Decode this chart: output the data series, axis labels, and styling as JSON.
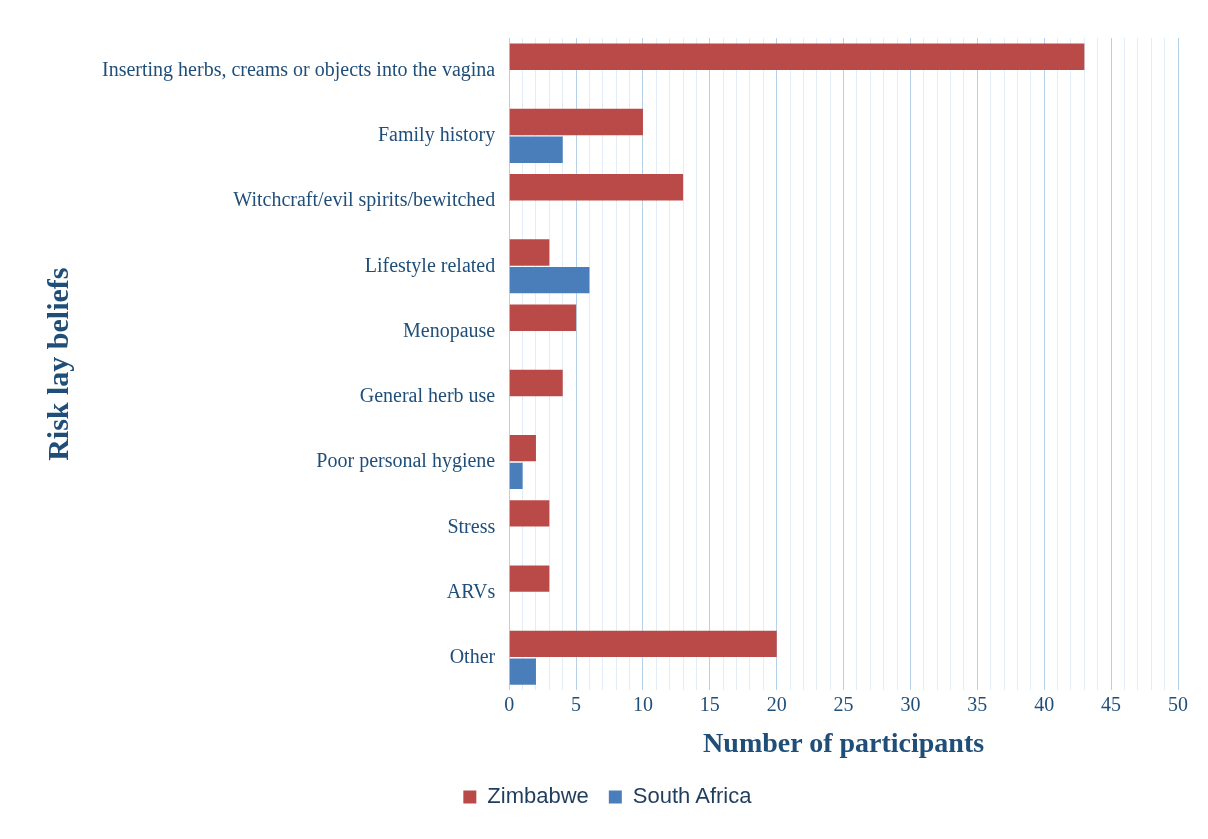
{
  "chart_data": {
    "type": "bar",
    "orientation": "horizontal",
    "xlabel": "Number of participants",
    "ylabel": "Risk lay beliefs",
    "categories": [
      "Inserting herbs, creams or objects into the vagina",
      "Family history",
      "Witchcraft/evil spirits/bewitched",
      "Lifestyle related",
      "Menopause",
      "General herb use",
      "Poor personal hygiene",
      "Stress",
      "ARVs",
      "Other"
    ],
    "series": [
      {
        "name": "Zimbabwe",
        "color": "#b94a48",
        "values": [
          43,
          10,
          13,
          3,
          5,
          4,
          2,
          3,
          3,
          20
        ]
      },
      {
        "name": "South Africa",
        "color": "#4a7ebb",
        "values": [
          null,
          4,
          null,
          6,
          null,
          null,
          1,
          null,
          null,
          2
        ]
      }
    ],
    "xlim": [
      0,
      50
    ],
    "xticks": [
      0,
      {
        "value": 1,
        "label": null
      },
      {
        "value": 2,
        "label": null
      },
      {
        "value": 3,
        "label": null
      },
      {
        "value": 4,
        "label": null
      },
      5,
      {
        "value": 6,
        "label": null
      },
      {
        "value": 7,
        "label": null
      },
      {
        "value": 8,
        "label": null
      },
      {
        "value": 9,
        "label": null
      },
      10,
      {
        "value": 11,
        "label": null
      },
      {
        "value": 12,
        "label": null
      },
      {
        "value": 13,
        "label": null
      },
      {
        "value": 14,
        "label": null
      },
      15,
      {
        "value": 16,
        "label": null
      },
      {
        "value": 17,
        "label": null
      },
      {
        "value": 18,
        "label": null
      },
      {
        "value": 19,
        "label": null
      },
      20,
      {
        "value": 21,
        "label": null
      },
      {
        "value": 22,
        "label": null
      },
      {
        "value": 23,
        "label": null
      },
      {
        "value": 24,
        "label": null
      },
      25,
      {
        "value": 26,
        "label": null
      },
      {
        "value": 27,
        "label": null
      },
      {
        "value": 28,
        "label": null
      },
      {
        "value": 29,
        "label": null
      },
      30,
      {
        "value": 31,
        "label": null
      },
      {
        "value": 32,
        "label": null
      },
      {
        "value": 33,
        "label": null
      },
      {
        "value": 34,
        "label": null
      },
      35,
      {
        "value": 36,
        "label": null
      },
      {
        "value": 37,
        "label": null
      },
      {
        "value": 38,
        "label": null
      },
      {
        "value": 39,
        "label": null
      },
      40,
      {
        "value": 41,
        "label": null
      },
      {
        "value": 42,
        "label": null
      },
      {
        "value": 43,
        "label": null
      },
      {
        "value": 44,
        "label": null
      },
      45,
      {
        "value": 46,
        "label": null
      },
      {
        "value": 47,
        "label": null
      },
      {
        "value": 48,
        "label": null
      },
      {
        "value": 49,
        "label": null
      },
      50
    ],
    "grid": "x",
    "legend": "bottom"
  }
}
